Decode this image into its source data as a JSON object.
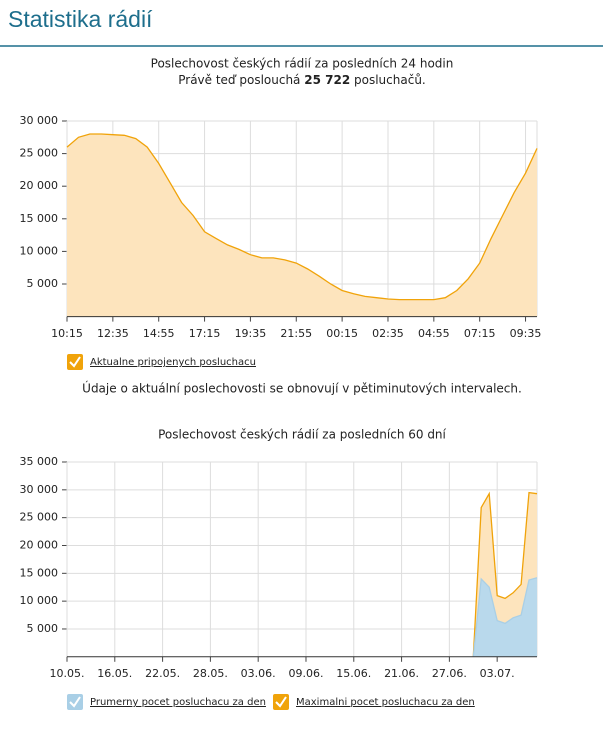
{
  "page": {
    "title": "Statistika rádií",
    "note": "Údaje o aktuální poslechovosti se obnovují v pětiminutových intervalech."
  },
  "chart_data": [
    {
      "type": "area",
      "title": "Poslechovost českých rádií za posledních 24 hodin",
      "subtitle_prefix": "Právě teď poslouchá",
      "current_listeners": "25 722",
      "subtitle_suffix": "posluchačů.",
      "categories": [
        "10:15",
        null,
        null,
        null,
        "12:35",
        null,
        null,
        null,
        "14:55",
        null,
        null,
        null,
        "17:15",
        null,
        null,
        null,
        "19:35",
        null,
        null,
        null,
        "21:55",
        null,
        null,
        null,
        "00:15",
        null,
        null,
        null,
        "02:35",
        null,
        null,
        null,
        "04:55",
        null,
        null,
        null,
        "07:15",
        null,
        null,
        null,
        "09:35",
        null
      ],
      "series": [
        {
          "name": "Aktualne pripojenych posluchacu",
          "color": "#f0a30a",
          "fill_color": "#fde4bd",
          "values": [
            26000,
            27500,
            28000,
            28000,
            27900,
            27800,
            27300,
            26000,
            23500,
            20500,
            17500,
            15500,
            13000,
            12000,
            11000,
            10300,
            9500,
            9000,
            9000,
            8700,
            8200,
            7300,
            6200,
            5000,
            4000,
            3500,
            3100,
            2900,
            2700,
            2600,
            2600,
            2600,
            2600,
            2900,
            4000,
            5800,
            8200,
            12000,
            15500,
            19000,
            22000,
            25800
          ]
        }
      ],
      "ylim": [
        0,
        30000
      ],
      "yticks": [
        {
          "value": 5000,
          "label": "5 000"
        },
        {
          "value": 10000,
          "label": "10 000"
        },
        {
          "value": 15000,
          "label": "15 000"
        },
        {
          "value": 20000,
          "label": "20 000"
        },
        {
          "value": 25000,
          "label": "25 000"
        },
        {
          "value": 30000,
          "label": "30 000"
        }
      ],
      "grid": true
    },
    {
      "type": "area",
      "title": "Poslechovost českých rádií za posledních 60 dní",
      "categories": [
        "10.05.",
        null,
        null,
        null,
        null,
        null,
        "16.05.",
        null,
        null,
        null,
        null,
        null,
        "22.05.",
        null,
        null,
        null,
        null,
        null,
        "28.05.",
        null,
        null,
        null,
        null,
        null,
        "03.06.",
        null,
        null,
        null,
        null,
        null,
        "09.06.",
        null,
        null,
        null,
        null,
        null,
        "15.06.",
        null,
        null,
        null,
        null,
        null,
        "21.06.",
        null,
        null,
        null,
        null,
        null,
        "27.06.",
        null,
        null,
        null,
        null,
        null,
        "03.07.",
        null,
        null,
        null,
        null,
        null
      ],
      "series": [
        {
          "name": "Prumerny pocet posluchacu za den",
          "color": "#a9cfe6",
          "fill_color": "#b9d9ec",
          "values": [
            null,
            null,
            null,
            null,
            null,
            null,
            null,
            null,
            null,
            null,
            null,
            null,
            null,
            null,
            null,
            null,
            null,
            null,
            null,
            null,
            null,
            null,
            null,
            null,
            null,
            null,
            null,
            null,
            null,
            null,
            null,
            null,
            null,
            null,
            null,
            null,
            null,
            null,
            null,
            null,
            null,
            null,
            null,
            null,
            null,
            null,
            null,
            null,
            null,
            null,
            null,
            0,
            14000,
            12500,
            6500,
            6000,
            7000,
            7500,
            13800,
            14200
          ]
        },
        {
          "name": "Maximalni pocet posluchacu za den",
          "color": "#f0a30a",
          "fill_color": "#fde4bd",
          "values": [
            null,
            null,
            null,
            null,
            null,
            null,
            null,
            null,
            null,
            null,
            null,
            null,
            null,
            null,
            null,
            null,
            null,
            null,
            null,
            null,
            null,
            null,
            null,
            null,
            null,
            null,
            null,
            null,
            null,
            null,
            null,
            null,
            null,
            null,
            null,
            null,
            null,
            null,
            null,
            null,
            null,
            null,
            null,
            null,
            null,
            null,
            null,
            null,
            null,
            null,
            null,
            0,
            26800,
            29300,
            11000,
            10500,
            11500,
            13000,
            29500,
            29300
          ]
        }
      ],
      "ylim": [
        0,
        35000
      ],
      "yticks": [
        {
          "value": 5000,
          "label": "5 000"
        },
        {
          "value": 10000,
          "label": "10 000"
        },
        {
          "value": 15000,
          "label": "15 000"
        },
        {
          "value": 20000,
          "label": "20 000"
        },
        {
          "value": 25000,
          "label": "25 000"
        },
        {
          "value": 30000,
          "label": "30 000"
        },
        {
          "value": 35000,
          "label": "35 000"
        }
      ],
      "grid": true
    }
  ]
}
